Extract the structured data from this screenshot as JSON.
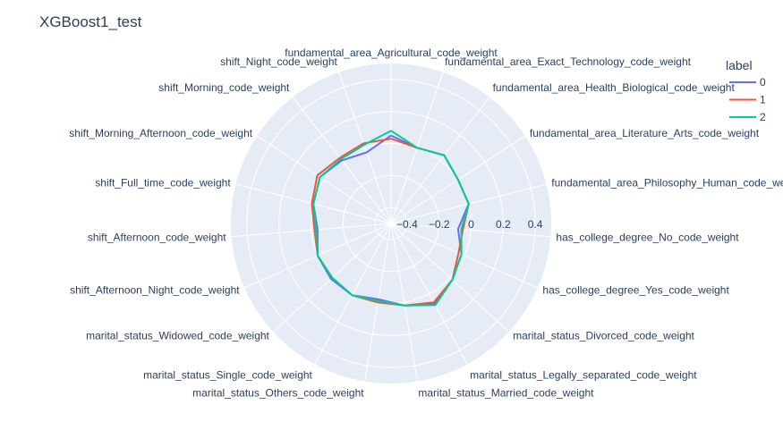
{
  "chart_data": {
    "type": "radar",
    "title": "XGBoost1_test",
    "categories": [
      "fundamental_area_Agricultural_code_weight",
      "fundamental_area_Exact_Technology_code_weight",
      "fundamental_area_Health_Biological_code_weight",
      "fundamental_area_Literature_Arts_code_weight",
      "fundamental_area_Philosophy_Human_code_weight",
      "has_college_degree_No_code_weight",
      "has_college_degree_Yes_code_weight",
      "marital_status_Divorced_code_weight",
      "marital_status_Legally_separated_code_weight",
      "marital_status_Married_code_weight",
      "marital_status_Others_code_weight",
      "marital_status_Single_code_weight",
      "marital_status_Widowed_code_weight",
      "shift_Afternoon_Night_code_weight",
      "shift_Afternoon_code_weight",
      "shift_Full_time_code_weight",
      "shift_Morning_Afternoon_code_weight",
      "shift_Morning_code_weight",
      "shift_Night_code_weight"
    ],
    "radial_range": [
      -0.5,
      0.5
    ],
    "radial_ticks": [
      -0.4,
      -0.2,
      0,
      0.2,
      0.4
    ],
    "radial_tick_labels": [
      "−0.4",
      "−0.2",
      "0",
      "0.2",
      "0.4"
    ],
    "legend_title": "label",
    "legend_position": "top-right",
    "series": [
      {
        "name": "0",
        "color": "#636efa",
        "values": [
          0.05,
          0.0,
          0.04,
          0.0,
          0.0,
          -0.08,
          -0.02,
          0.02,
          0.07,
          0.02,
          -0.02,
          0.01,
          0.01,
          0.0,
          -0.04,
          0.0,
          0.03,
          0.0,
          -0.03
        ]
      },
      {
        "name": "1",
        "color": "#ef553b",
        "values": [
          0.03,
          0.0,
          0.04,
          0.0,
          0.0,
          -0.05,
          -0.04,
          0.02,
          0.06,
          0.02,
          0.0,
          0.01,
          0.0,
          0.0,
          -0.02,
          0.01,
          0.05,
          0.02,
          0.03
        ]
      },
      {
        "name": "2",
        "color": "#00cc96",
        "values": [
          0.08,
          0.0,
          0.04,
          0.0,
          0.0,
          -0.06,
          -0.02,
          0.02,
          0.08,
          0.02,
          -0.01,
          0.01,
          0.0,
          0.0,
          -0.03,
          0.0,
          0.03,
          0.01,
          0.02
        ]
      }
    ]
  }
}
